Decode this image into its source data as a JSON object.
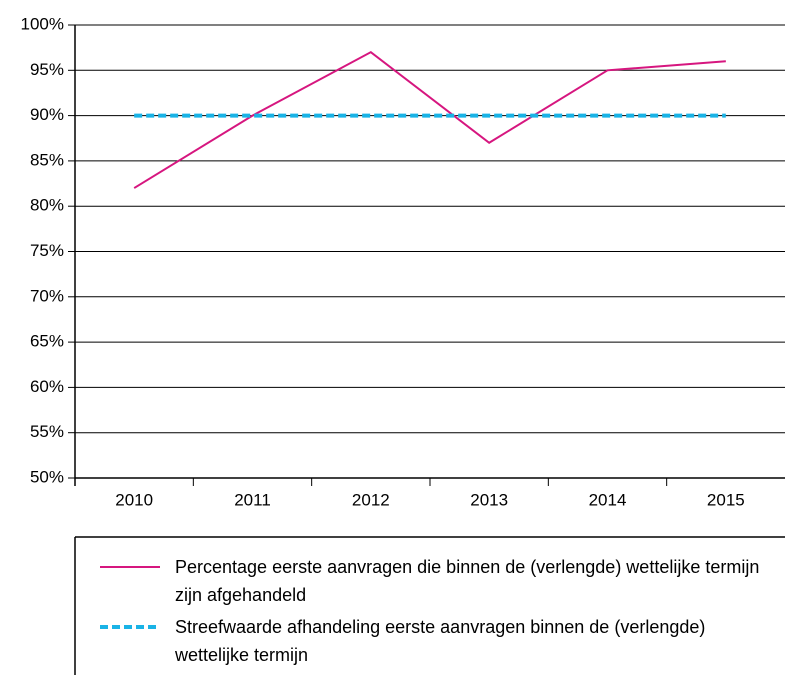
{
  "chart_data": {
    "type": "line",
    "categories": [
      "2010",
      "2011",
      "2012",
      "2013",
      "2014",
      "2015"
    ],
    "series": [
      {
        "name": "Percentage eerste aanvragen die binnen de (verlengde) wettelijke termijn zijn afgehandeld",
        "color": "#d6167f",
        "dash": false,
        "values": [
          82,
          90,
          97,
          87,
          95,
          96
        ]
      },
      {
        "name": "Streefwaarde afhandeling eerste aanvragen binnen de (verlengde) wettelijke termijn",
        "color": "#1ab3e6",
        "dash": true,
        "values": [
          90,
          90,
          90,
          90,
          90,
          90
        ]
      }
    ],
    "ylim": [
      50,
      100
    ],
    "yticks": [
      {
        "value": 50,
        "label": "50%"
      },
      {
        "value": 55,
        "label": "55%"
      },
      {
        "value": 60,
        "label": "60%"
      },
      {
        "value": 65,
        "label": "65%"
      },
      {
        "value": 70,
        "label": "70%"
      },
      {
        "value": 75,
        "label": "75%"
      },
      {
        "value": 80,
        "label": "80%"
      },
      {
        "value": 85,
        "label": "85%"
      },
      {
        "value": 90,
        "label": "90%"
      },
      {
        "value": 95,
        "label": "95%"
      },
      {
        "value": 100,
        "label": "100%"
      }
    ],
    "grid": true
  }
}
